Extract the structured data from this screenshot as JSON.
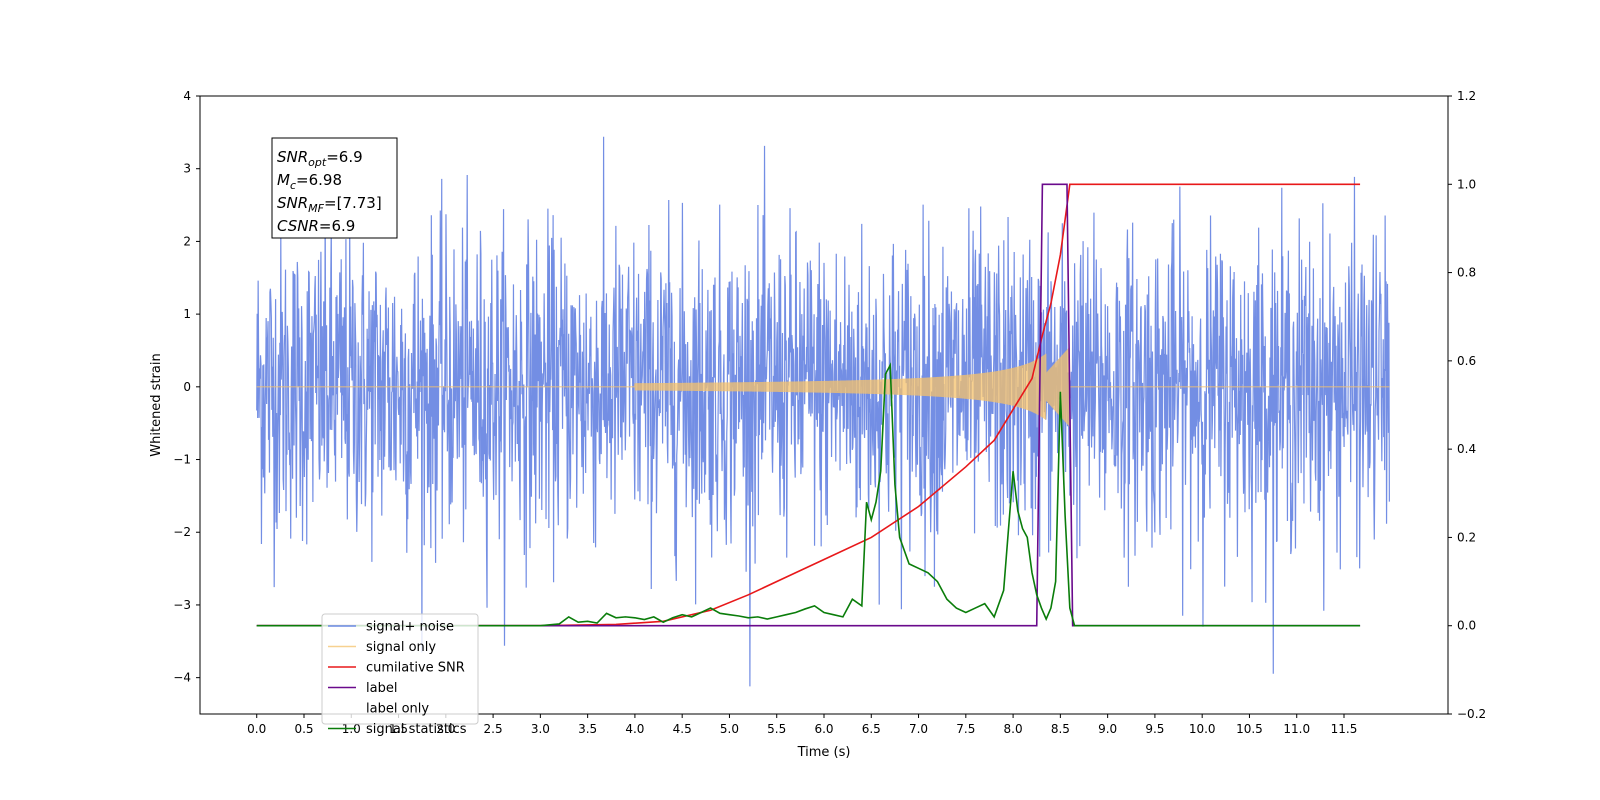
{
  "chart_data": {
    "type": "line",
    "xlabel": "Time (s)",
    "ylabel_left": "Whitened strain",
    "ylabel_right": "",
    "xlim": [
      -0.6,
      12.6
    ],
    "ylim_left": [
      -4.5,
      4.0
    ],
    "ylim_right": [
      -0.2,
      1.2
    ],
    "x_ticks": [
      "0.0",
      "0.5",
      "1.0",
      "1.5",
      "2.0",
      "2.5",
      "3.0",
      "3.5",
      "4.0",
      "4.5",
      "5.0",
      "5.5",
      "6.0",
      "6.5",
      "7.0",
      "7.5",
      "8.0",
      "8.5",
      "9.0",
      "9.5",
      "10.0",
      "10.5",
      "11.0",
      "11.5"
    ],
    "y_ticks_left": [
      "4",
      "3",
      "2",
      "1",
      "0",
      "−1",
      "−2",
      "−3",
      "−4"
    ],
    "y_ticks_right": [
      "1.2",
      "1.0",
      "0.8",
      "0.6",
      "0.4",
      "0.2",
      "0.0",
      "−0.2"
    ],
    "grid": false,
    "legend_position": "lower-left",
    "annotation": {
      "lines": [
        {
          "base": "SNR",
          "sub": "opt",
          "value": "=6.9"
        },
        {
          "base": "M",
          "sub": "c",
          "value": "=6.98"
        },
        {
          "base": "SNR",
          "sub": "MF",
          "value": "=[7.73]"
        },
        {
          "base": "CSNR",
          "sub": "",
          "value": "=6.9"
        }
      ]
    },
    "series": [
      {
        "name": "signal+ noise",
        "color": "#6b88e3",
        "axis": "left",
        "description_values": {
          "t_range": [
            0.0,
            11.98
          ],
          "noise_sigma": 1.0,
          "max": 3.62,
          "min": -4.12
        }
      },
      {
        "name": "signal only",
        "color": "#f5c26b",
        "axis": "left",
        "chirp": {
          "t_start": 4.0,
          "t_merge": 8.6,
          "peak_amplitude": 0.55
        }
      },
      {
        "name": "cumilative SNR",
        "color": "#e8181a",
        "axis": "right",
        "points": [
          [
            0.0,
            0.0
          ],
          [
            3.0,
            0.0
          ],
          [
            3.8,
            0.003
          ],
          [
            4.3,
            0.01
          ],
          [
            4.8,
            0.035
          ],
          [
            5.2,
            0.07
          ],
          [
            5.6,
            0.11
          ],
          [
            6.0,
            0.15
          ],
          [
            6.5,
            0.2
          ],
          [
            7.0,
            0.27
          ],
          [
            7.5,
            0.36
          ],
          [
            7.8,
            0.42
          ],
          [
            8.0,
            0.49
          ],
          [
            8.2,
            0.56
          ],
          [
            8.3,
            0.65
          ],
          [
            8.4,
            0.73
          ],
          [
            8.5,
            0.84
          ],
          [
            8.55,
            0.92
          ],
          [
            8.6,
            1.0
          ],
          [
            11.6,
            1.0
          ],
          [
            11.67,
            1.0
          ]
        ]
      },
      {
        "name": "label",
        "color": "#6a0a8c",
        "axis": "right",
        "points": [
          [
            0.0,
            0.0
          ],
          [
            8.25,
            0.0
          ],
          [
            8.31,
            1.0
          ],
          [
            8.57,
            1.0
          ],
          [
            8.63,
            0.0
          ],
          [
            11.67,
            0.0
          ]
        ]
      },
      {
        "name": "label only",
        "color": "#b8b8b8",
        "axis": "right",
        "hidden_line": true
      },
      {
        "name": "signal statistics",
        "color": "#0a7d0a",
        "axis": "right",
        "points": [
          [
            0.0,
            0.0
          ],
          [
            3.0,
            0.0
          ],
          [
            3.1,
            0.002
          ],
          [
            3.2,
            0.004
          ],
          [
            3.3,
            0.02
          ],
          [
            3.4,
            0.008
          ],
          [
            3.5,
            0.01
          ],
          [
            3.6,
            0.006
          ],
          [
            3.7,
            0.028
          ],
          [
            3.8,
            0.018
          ],
          [
            3.9,
            0.02
          ],
          [
            4.0,
            0.018
          ],
          [
            4.1,
            0.014
          ],
          [
            4.2,
            0.02
          ],
          [
            4.3,
            0.008
          ],
          [
            4.4,
            0.018
          ],
          [
            4.5,
            0.025
          ],
          [
            4.6,
            0.02
          ],
          [
            4.7,
            0.03
          ],
          [
            4.8,
            0.04
          ],
          [
            4.9,
            0.028
          ],
          [
            5.0,
            0.025
          ],
          [
            5.1,
            0.022
          ],
          [
            5.2,
            0.018
          ],
          [
            5.3,
            0.02
          ],
          [
            5.4,
            0.015
          ],
          [
            5.5,
            0.02
          ],
          [
            5.6,
            0.025
          ],
          [
            5.7,
            0.03
          ],
          [
            5.8,
            0.038
          ],
          [
            5.9,
            0.045
          ],
          [
            6.0,
            0.03
          ],
          [
            6.1,
            0.025
          ],
          [
            6.2,
            0.02
          ],
          [
            6.3,
            0.06
          ],
          [
            6.4,
            0.045
          ],
          [
            6.45,
            0.28
          ],
          [
            6.5,
            0.24
          ],
          [
            6.55,
            0.28
          ],
          [
            6.6,
            0.35
          ],
          [
            6.65,
            0.57
          ],
          [
            6.7,
            0.59
          ],
          [
            6.75,
            0.32
          ],
          [
            6.8,
            0.2
          ],
          [
            6.9,
            0.14
          ],
          [
            7.0,
            0.13
          ],
          [
            7.1,
            0.12
          ],
          [
            7.2,
            0.1
          ],
          [
            7.3,
            0.06
          ],
          [
            7.4,
            0.04
          ],
          [
            7.5,
            0.03
          ],
          [
            7.6,
            0.04
          ],
          [
            7.7,
            0.05
          ],
          [
            7.8,
            0.02
          ],
          [
            7.9,
            0.08
          ],
          [
            8.0,
            0.35
          ],
          [
            8.05,
            0.26
          ],
          [
            8.1,
            0.22
          ],
          [
            8.15,
            0.2
          ],
          [
            8.2,
            0.12
          ],
          [
            8.25,
            0.07
          ],
          [
            8.3,
            0.04
          ],
          [
            8.35,
            0.015
          ],
          [
            8.4,
            0.04
          ],
          [
            8.45,
            0.1
          ],
          [
            8.5,
            0.53
          ],
          [
            8.55,
            0.25
          ],
          [
            8.6,
            0.04
          ],
          [
            8.65,
            0.0
          ],
          [
            11.67,
            0.0
          ]
        ]
      }
    ]
  }
}
